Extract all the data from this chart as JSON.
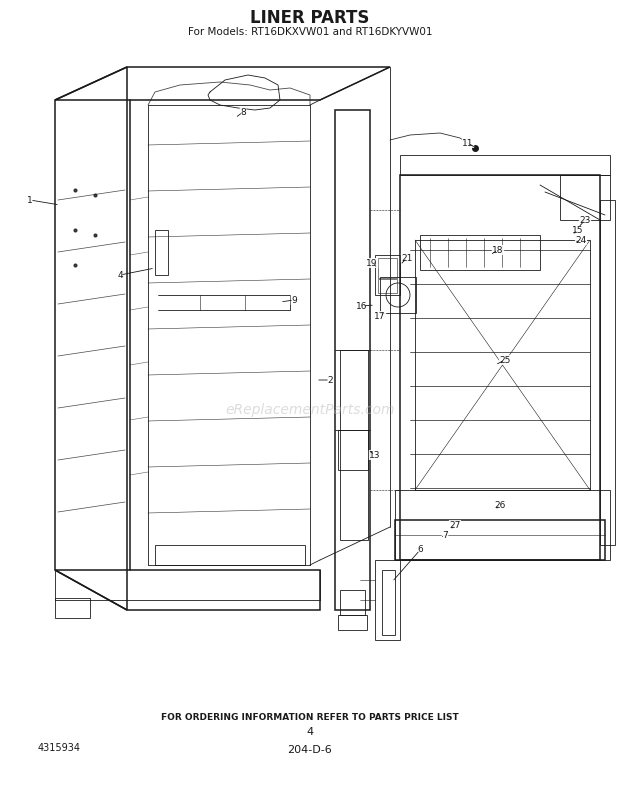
{
  "title": "LINER PARTS",
  "subtitle": "For Models: RT16DKXVW01 and RT16DKYVW01",
  "footer_text": "FOR ORDERING INFORMATION REFER TO PARTS PRICE LIST",
  "page_number": "4",
  "doc_code": "204-D-6",
  "part_number": "4315934",
  "bg_color": "#ffffff",
  "line_color": "#1a1a1a",
  "watermark_text": "eReplacementParts.com",
  "lw_main": 1.1,
  "lw_detail": 0.6,
  "lw_thin": 0.4
}
